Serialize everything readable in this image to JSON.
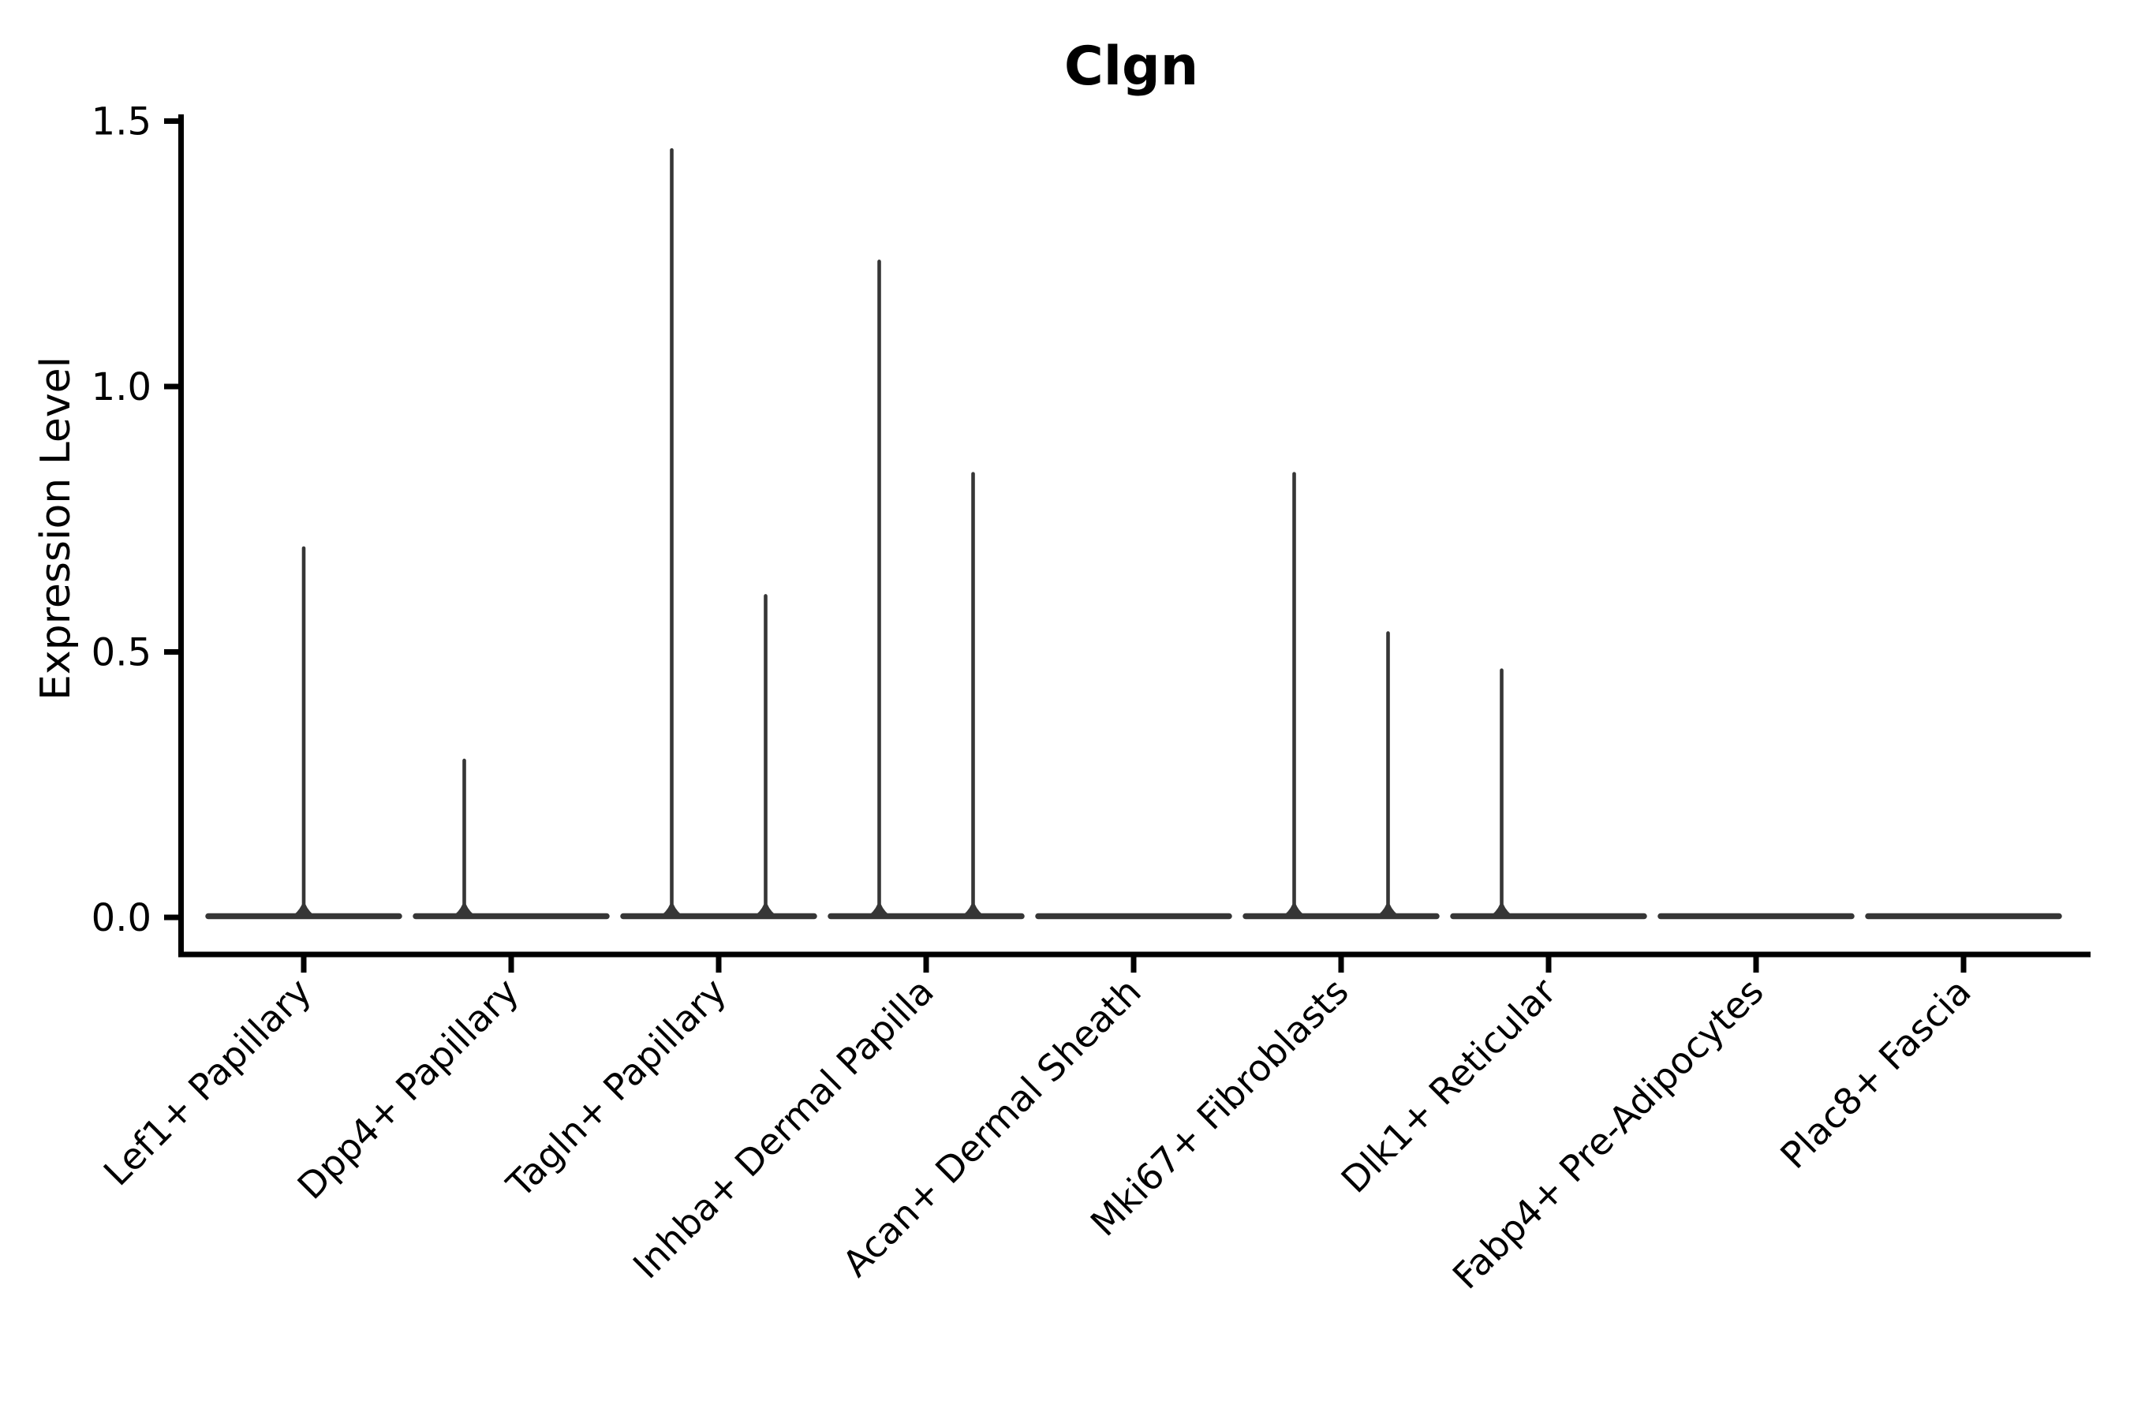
{
  "page": {
    "background": "#ffffff"
  },
  "chart_data": {
    "type": "violin",
    "title": "Clgn",
    "xlabel": "",
    "ylabel": "Expression Level",
    "ylim": [
      0,
      1.5
    ],
    "yticks": [
      0.0,
      0.5,
      1.0,
      1.5
    ],
    "ytick_labels": [
      "0.0",
      "0.5",
      "1.0",
      "1.5"
    ],
    "grid": false,
    "legend": "none",
    "categories": [
      "Lef1+ Papillary",
      "Dpp4+ Papillary",
      "Tagln+ Papillary",
      "Inhba+ Dermal Papilla",
      "Acan+ Dermal Sheath",
      "Mki67+ Fibroblasts",
      "Dlk1+ Reticular",
      "Fabp4+ Pre-Adipocytes",
      "Plac8+ Fascia"
    ],
    "violins": [
      {
        "category": "Lef1+ Papillary",
        "layout": "single",
        "spikes": [
          {
            "position": "center",
            "max_expression": 0.7
          }
        ]
      },
      {
        "category": "Dpp4+ Papillary",
        "layout": "pair",
        "spikes": [
          {
            "position": "left",
            "max_expression": 0.3
          },
          {
            "position": "right",
            "max_expression": 0
          }
        ]
      },
      {
        "category": "Tagln+ Papillary",
        "layout": "pair",
        "spikes": [
          {
            "position": "left",
            "max_expression": 1.45
          },
          {
            "position": "right",
            "max_expression": 0.61
          }
        ]
      },
      {
        "category": "Inhba+ Dermal Papilla",
        "layout": "pair",
        "spikes": [
          {
            "position": "left",
            "max_expression": 1.24
          },
          {
            "position": "right",
            "max_expression": 0.84
          }
        ]
      },
      {
        "category": "Acan+ Dermal Sheath",
        "layout": "single",
        "spikes": [
          {
            "position": "center",
            "max_expression": 0
          }
        ]
      },
      {
        "category": "Mki67+ Fibroblasts",
        "layout": "pair",
        "spikes": [
          {
            "position": "left",
            "max_expression": 0.84
          },
          {
            "position": "right",
            "max_expression": 0.54
          }
        ]
      },
      {
        "category": "Dlk1+ Reticular",
        "layout": "pair",
        "spikes": [
          {
            "position": "left",
            "max_expression": 0.47
          },
          {
            "position": "right",
            "max_expression": 0
          }
        ]
      },
      {
        "category": "Fabp4+ Pre-Adipocytes",
        "layout": "single",
        "spikes": [
          {
            "position": "center",
            "max_expression": 0
          }
        ]
      },
      {
        "category": "Plac8+ Fascia",
        "layout": "single",
        "spikes": [
          {
            "position": "center",
            "max_expression": 0
          }
        ]
      }
    ],
    "colors": {
      "violin_line": "#363636",
      "axis": "#000000",
      "text": "#000000",
      "background": "#ffffff"
    }
  }
}
